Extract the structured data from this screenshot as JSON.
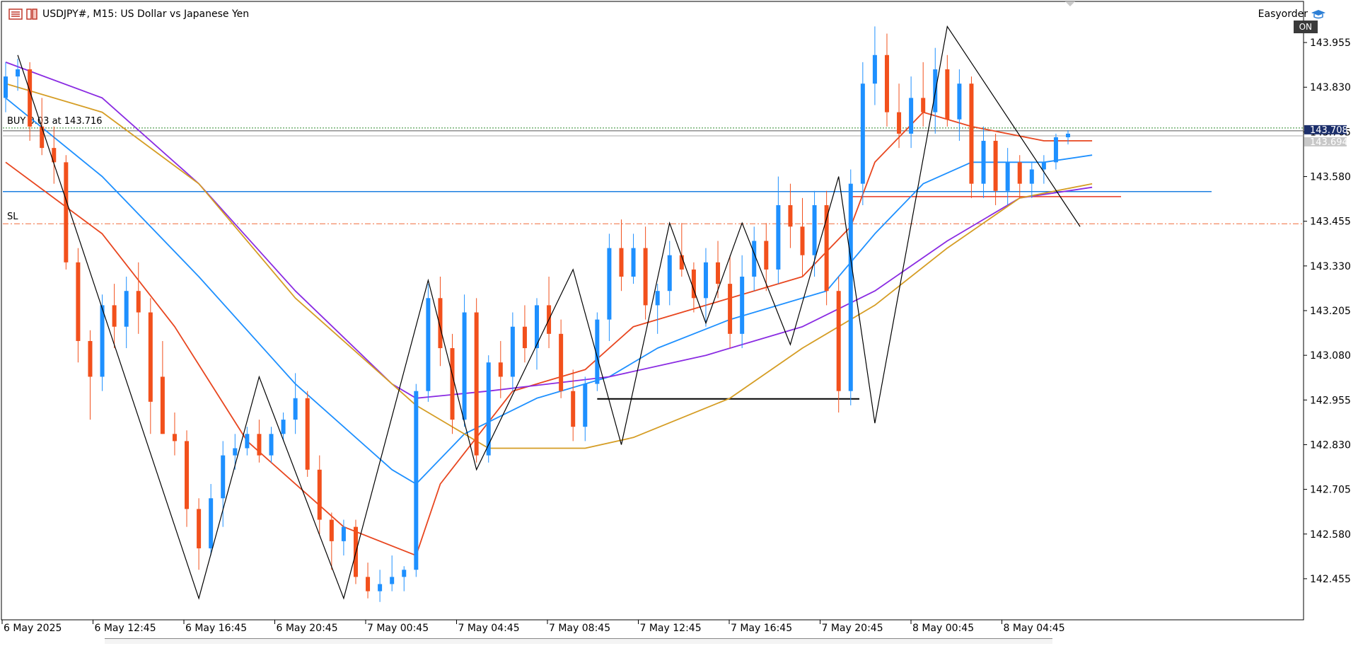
{
  "header": {
    "symbol_line": "USDJPY#, M15:  US Dollar vs Japanese Yen",
    "ea_name": "Easyorder",
    "ea_status": "ON"
  },
  "chart_data": {
    "type": "candlestick",
    "ylim": [
      142.34,
      144.07
    ],
    "y_ticks": [
      "143.955",
      "143.830",
      "143.705",
      "143.580",
      "143.455",
      "143.330",
      "143.205",
      "143.080",
      "142.955",
      "142.830",
      "142.705",
      "142.580",
      "142.455"
    ],
    "x_ticks": [
      "6 May 2025",
      "6 May 12:45",
      "6 May 16:45",
      "6 May 20:45",
      "7 May 00:45",
      "7 May 04:45",
      "7 May 08:45",
      "7 May 12:45",
      "7 May 16:45",
      "7 May 20:45",
      "8 May 00:45",
      "8 May 04:45"
    ],
    "order_label": "BUY 0.03 at 143.716",
    "sl_label": "SL",
    "sl_price": 143.448,
    "buy_price": 143.716,
    "price_labels": [
      "143.708",
      "143.694"
    ],
    "bid_price": 143.694,
    "ask_price": 143.708,
    "blue_hline": 143.538,
    "red_hline": 143.524,
    "black_hline": 142.958,
    "candles": [
      [
        143.8,
        143.9,
        143.76,
        143.86
      ],
      [
        143.86,
        143.91,
        143.82,
        143.88
      ],
      [
        143.88,
        143.9,
        143.68,
        143.72
      ],
      [
        143.72,
        143.8,
        143.64,
        143.66
      ],
      [
        143.66,
        143.72,
        143.56,
        143.62
      ],
      [
        143.62,
        143.64,
        143.32,
        143.34
      ],
      [
        143.34,
        143.38,
        143.06,
        143.12
      ],
      [
        143.12,
        143.15,
        142.9,
        143.02
      ],
      [
        143.02,
        143.25,
        142.98,
        143.22
      ],
      [
        143.22,
        143.28,
        143.1,
        143.16
      ],
      [
        143.16,
        143.3,
        143.1,
        143.26
      ],
      [
        143.26,
        143.34,
        143.14,
        143.2
      ],
      [
        143.2,
        143.24,
        142.86,
        142.95
      ],
      [
        143.02,
        143.12,
        142.86,
        142.86
      ],
      [
        142.86,
        142.92,
        142.8,
        142.84
      ],
      [
        142.84,
        142.87,
        142.6,
        142.65
      ],
      [
        142.65,
        142.68,
        142.48,
        142.54
      ],
      [
        142.54,
        142.72,
        142.52,
        142.68
      ],
      [
        142.68,
        142.84,
        142.6,
        142.8
      ],
      [
        142.8,
        142.86,
        142.76,
        142.82
      ],
      [
        142.82,
        142.88,
        142.8,
        142.86
      ],
      [
        142.86,
        142.9,
        142.78,
        142.8
      ],
      [
        142.8,
        142.88,
        142.78,
        142.86
      ],
      [
        142.86,
        142.92,
        142.84,
        142.9
      ],
      [
        142.9,
        143.03,
        142.86,
        142.96
      ],
      [
        142.96,
        142.98,
        142.74,
        142.76
      ],
      [
        142.76,
        142.8,
        142.58,
        142.62
      ],
      [
        142.62,
        142.64,
        142.48,
        142.56
      ],
      [
        142.56,
        142.62,
        142.52,
        142.6
      ],
      [
        142.6,
        142.62,
        142.44,
        142.46
      ],
      [
        142.46,
        142.5,
        142.4,
        142.42
      ],
      [
        142.42,
        142.48,
        142.39,
        142.44
      ],
      [
        142.44,
        142.52,
        142.42,
        142.46
      ],
      [
        142.46,
        142.49,
        142.42,
        142.48
      ],
      [
        142.48,
        143.0,
        142.46,
        142.98
      ],
      [
        142.98,
        143.28,
        142.95,
        143.24
      ],
      [
        143.24,
        143.3,
        143.05,
        143.1
      ],
      [
        143.1,
        143.14,
        142.86,
        142.9
      ],
      [
        142.9,
        143.25,
        142.88,
        143.2
      ],
      [
        143.2,
        143.24,
        142.78,
        142.8
      ],
      [
        142.8,
        143.08,
        142.78,
        143.06
      ],
      [
        143.06,
        143.12,
        142.96,
        143.02
      ],
      [
        143.02,
        143.2,
        142.98,
        143.16
      ],
      [
        143.16,
        143.22,
        143.06,
        143.1
      ],
      [
        143.1,
        143.24,
        143.04,
        143.22
      ],
      [
        143.22,
        143.3,
        143.1,
        143.14
      ],
      [
        143.14,
        143.18,
        142.96,
        142.98
      ],
      [
        142.98,
        143.04,
        142.84,
        142.88
      ],
      [
        142.88,
        143.02,
        142.84,
        143.0
      ],
      [
        143.0,
        143.2,
        142.98,
        143.18
      ],
      [
        143.18,
        143.42,
        143.12,
        143.38
      ],
      [
        143.38,
        143.46,
        143.26,
        143.3
      ],
      [
        143.3,
        143.42,
        143.28,
        143.38
      ],
      [
        143.38,
        143.44,
        143.18,
        143.22
      ],
      [
        143.22,
        143.28,
        143.14,
        143.26
      ],
      [
        143.26,
        143.4,
        143.22,
        143.36
      ],
      [
        143.36,
        143.45,
        143.3,
        143.32
      ],
      [
        143.32,
        143.34,
        143.2,
        143.24
      ],
      [
        143.24,
        143.38,
        143.16,
        143.34
      ],
      [
        143.34,
        143.4,
        143.24,
        143.28
      ],
      [
        143.28,
        143.36,
        143.1,
        143.14
      ],
      [
        143.14,
        143.36,
        143.1,
        143.3
      ],
      [
        143.3,
        143.44,
        143.26,
        143.4
      ],
      [
        143.4,
        143.45,
        143.26,
        143.32
      ],
      [
        143.32,
        143.58,
        143.28,
        143.5
      ],
      [
        143.5,
        143.56,
        143.38,
        143.44
      ],
      [
        143.44,
        143.52,
        143.3,
        143.36
      ],
      [
        143.36,
        143.54,
        143.3,
        143.5
      ],
      [
        143.5,
        143.54,
        143.22,
        143.26
      ],
      [
        143.26,
        143.3,
        142.92,
        142.98
      ],
      [
        142.98,
        143.6,
        142.94,
        143.56
      ],
      [
        143.56,
        143.9,
        143.5,
        143.84
      ],
      [
        143.84,
        144.0,
        143.78,
        143.92
      ],
      [
        143.92,
        143.98,
        143.72,
        143.76
      ],
      [
        143.76,
        143.84,
        143.66,
        143.7
      ],
      [
        143.7,
        143.86,
        143.66,
        143.8
      ],
      [
        143.8,
        143.9,
        143.72,
        143.76
      ],
      [
        143.76,
        143.94,
        143.7,
        143.88
      ],
      [
        143.88,
        143.92,
        143.72,
        143.74
      ],
      [
        143.74,
        143.88,
        143.68,
        143.84
      ],
      [
        143.84,
        143.86,
        143.52,
        143.56
      ],
      [
        143.56,
        143.72,
        143.52,
        143.68
      ],
      [
        143.68,
        143.7,
        143.5,
        143.54
      ],
      [
        143.54,
        143.66,
        143.5,
        143.62
      ],
      [
        143.62,
        143.64,
        143.52,
        143.56
      ],
      [
        143.56,
        143.62,
        143.52,
        143.6
      ],
      [
        143.6,
        143.64,
        143.56,
        143.62
      ],
      [
        143.62,
        143.7,
        143.6,
        143.69
      ],
      [
        143.69,
        143.71,
        143.67,
        143.7
      ]
    ],
    "series": [
      {
        "color": "#e8461f",
        "values": [
          [
            0,
            143.62
          ],
          [
            8,
            143.42
          ],
          [
            14,
            143.16
          ],
          [
            20,
            142.84
          ],
          [
            28,
            142.6
          ],
          [
            34,
            142.52
          ],
          [
            36,
            142.72
          ],
          [
            42,
            142.98
          ],
          [
            48,
            143.04
          ],
          [
            52,
            143.16
          ],
          [
            58,
            143.22
          ],
          [
            66,
            143.3
          ],
          [
            70,
            143.44
          ],
          [
            72,
            143.62
          ],
          [
            76,
            143.76
          ],
          [
            80,
            143.72
          ],
          [
            86,
            143.68
          ],
          [
            90,
            143.68
          ]
        ]
      },
      {
        "color": "#1e90ff",
        "values": [
          [
            0,
            143.8
          ],
          [
            8,
            143.58
          ],
          [
            16,
            143.3
          ],
          [
            24,
            143.0
          ],
          [
            32,
            142.76
          ],
          [
            34,
            142.72
          ],
          [
            38,
            142.86
          ],
          [
            44,
            142.96
          ],
          [
            50,
            143.02
          ],
          [
            54,
            143.1
          ],
          [
            60,
            143.18
          ],
          [
            68,
            143.26
          ],
          [
            72,
            143.42
          ],
          [
            76,
            143.56
          ],
          [
            80,
            143.62
          ],
          [
            86,
            143.62
          ],
          [
            90,
            143.64
          ]
        ]
      },
      {
        "color": "#8a2be2",
        "values": [
          [
            0,
            143.9
          ],
          [
            8,
            143.8
          ],
          [
            16,
            143.56
          ],
          [
            24,
            143.26
          ],
          [
            32,
            143.0
          ],
          [
            34,
            142.96
          ],
          [
            40,
            142.98
          ],
          [
            50,
            143.02
          ],
          [
            58,
            143.08
          ],
          [
            66,
            143.16
          ],
          [
            72,
            143.26
          ],
          [
            78,
            143.4
          ],
          [
            84,
            143.52
          ],
          [
            90,
            143.55
          ]
        ]
      },
      {
        "color": "#d59d24",
        "values": [
          [
            0,
            143.84
          ],
          [
            8,
            143.76
          ],
          [
            16,
            143.56
          ],
          [
            24,
            143.24
          ],
          [
            32,
            143.0
          ],
          [
            34,
            142.94
          ],
          [
            40,
            142.82
          ],
          [
            48,
            142.82
          ],
          [
            52,
            142.85
          ],
          [
            60,
            142.96
          ],
          [
            66,
            143.1
          ],
          [
            72,
            143.22
          ],
          [
            78,
            143.38
          ],
          [
            84,
            143.52
          ],
          [
            90,
            143.56
          ]
        ]
      }
    ],
    "zigzag": [
      [
        1,
        143.92
      ],
      [
        16,
        142.4
      ],
      [
        21,
        143.02
      ],
      [
        28,
        142.4
      ],
      [
        35,
        143.29
      ],
      [
        39,
        142.76
      ],
      [
        47,
        143.32
      ],
      [
        51,
        142.83
      ],
      [
        55,
        143.45
      ],
      [
        58,
        143.17
      ],
      [
        61,
        143.45
      ],
      [
        65,
        143.11
      ],
      [
        69,
        143.58
      ],
      [
        72,
        142.89
      ],
      [
        78,
        144.0
      ],
      [
        89,
        143.44
      ]
    ]
  }
}
